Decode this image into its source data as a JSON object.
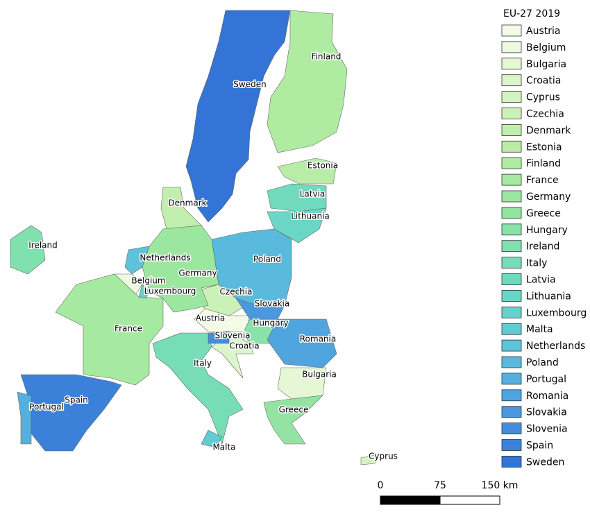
{
  "legend": {
    "title": "EU-27 2019",
    "items": [
      {
        "name": "Austria",
        "color": "#f3fbe6"
      },
      {
        "name": "Belgium",
        "color": "#eefae0"
      },
      {
        "name": "Bulgaria",
        "color": "#e6f7d6"
      },
      {
        "name": "Croatia",
        "color": "#ddf5cc"
      },
      {
        "name": "Cyprus",
        "color": "#d4f3c2"
      },
      {
        "name": "Czechia",
        "color": "#cbf1b8"
      },
      {
        "name": "Denmark",
        "color": "#c2efae"
      },
      {
        "name": "Estonia",
        "color": "#b9eda7"
      },
      {
        "name": "Finland",
        "color": "#b0eba2"
      },
      {
        "name": "France",
        "color": "#a6e9a0"
      },
      {
        "name": "Germany",
        "color": "#9ce79f"
      },
      {
        "name": "Greece",
        "color": "#93e4a3"
      },
      {
        "name": "Hungary",
        "color": "#89e2a8"
      },
      {
        "name": "Ireland",
        "color": "#80e0ae"
      },
      {
        "name": "Italy",
        "color": "#77ddb6"
      },
      {
        "name": "Latvia",
        "color": "#70dabe"
      },
      {
        "name": "Lithuania",
        "color": "#6ad6c6"
      },
      {
        "name": "Luxembourg",
        "color": "#66d1cd"
      },
      {
        "name": "Malta",
        "color": "#62cbd4"
      },
      {
        "name": "Netherlands",
        "color": "#5ec3d9"
      },
      {
        "name": "Poland",
        "color": "#5abadd"
      },
      {
        "name": "Portugal",
        "color": "#55b0df"
      },
      {
        "name": "Romania",
        "color": "#50a5df"
      },
      {
        "name": "Slovakia",
        "color": "#4a99de"
      },
      {
        "name": "Slovenia",
        "color": "#448ddc"
      },
      {
        "name": "Spain",
        "color": "#3c81d9"
      },
      {
        "name": "Sweden",
        "color": "#3474d6"
      }
    ]
  },
  "scale_bar": {
    "ticks": [
      0,
      75,
      {
        "value": 150,
        "label": "150 km"
      }
    ]
  }
}
